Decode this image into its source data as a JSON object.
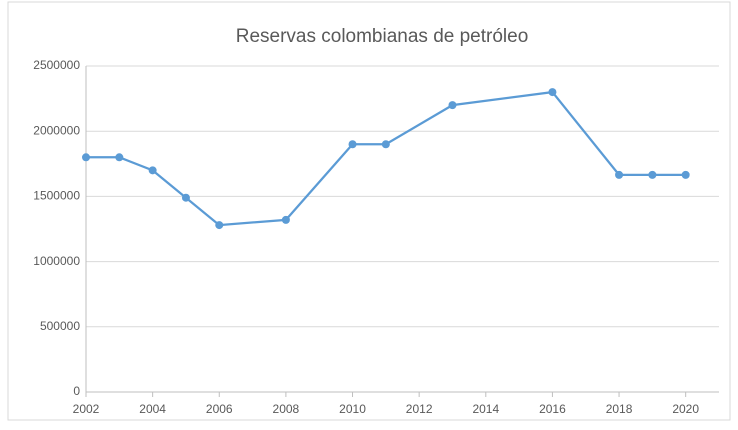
{
  "chart_data": {
    "type": "line",
    "title": "Reservas colombianas de petróleo",
    "x": [
      2002,
      2003,
      2004,
      2005,
      2006,
      2008,
      2010,
      2011,
      2013,
      2016,
      2018,
      2019,
      2020
    ],
    "series": [
      {
        "name": "Reservas",
        "color": "#5b9bd5",
        "values": [
          1800000,
          1800000,
          1700000,
          1490000,
          1280000,
          1320000,
          1900000,
          1900000,
          2200000,
          2300000,
          1665000,
          1665000,
          1665000
        ]
      }
    ],
    "xlim": [
      2002,
      2021
    ],
    "xticks": [
      2002,
      2004,
      2006,
      2008,
      2010,
      2012,
      2014,
      2016,
      2018,
      2020
    ],
    "ylim": [
      0,
      2500000
    ],
    "yticks": [
      0,
      500000,
      1000000,
      1500000,
      2000000,
      2500000
    ],
    "grid": true,
    "legend": false
  }
}
